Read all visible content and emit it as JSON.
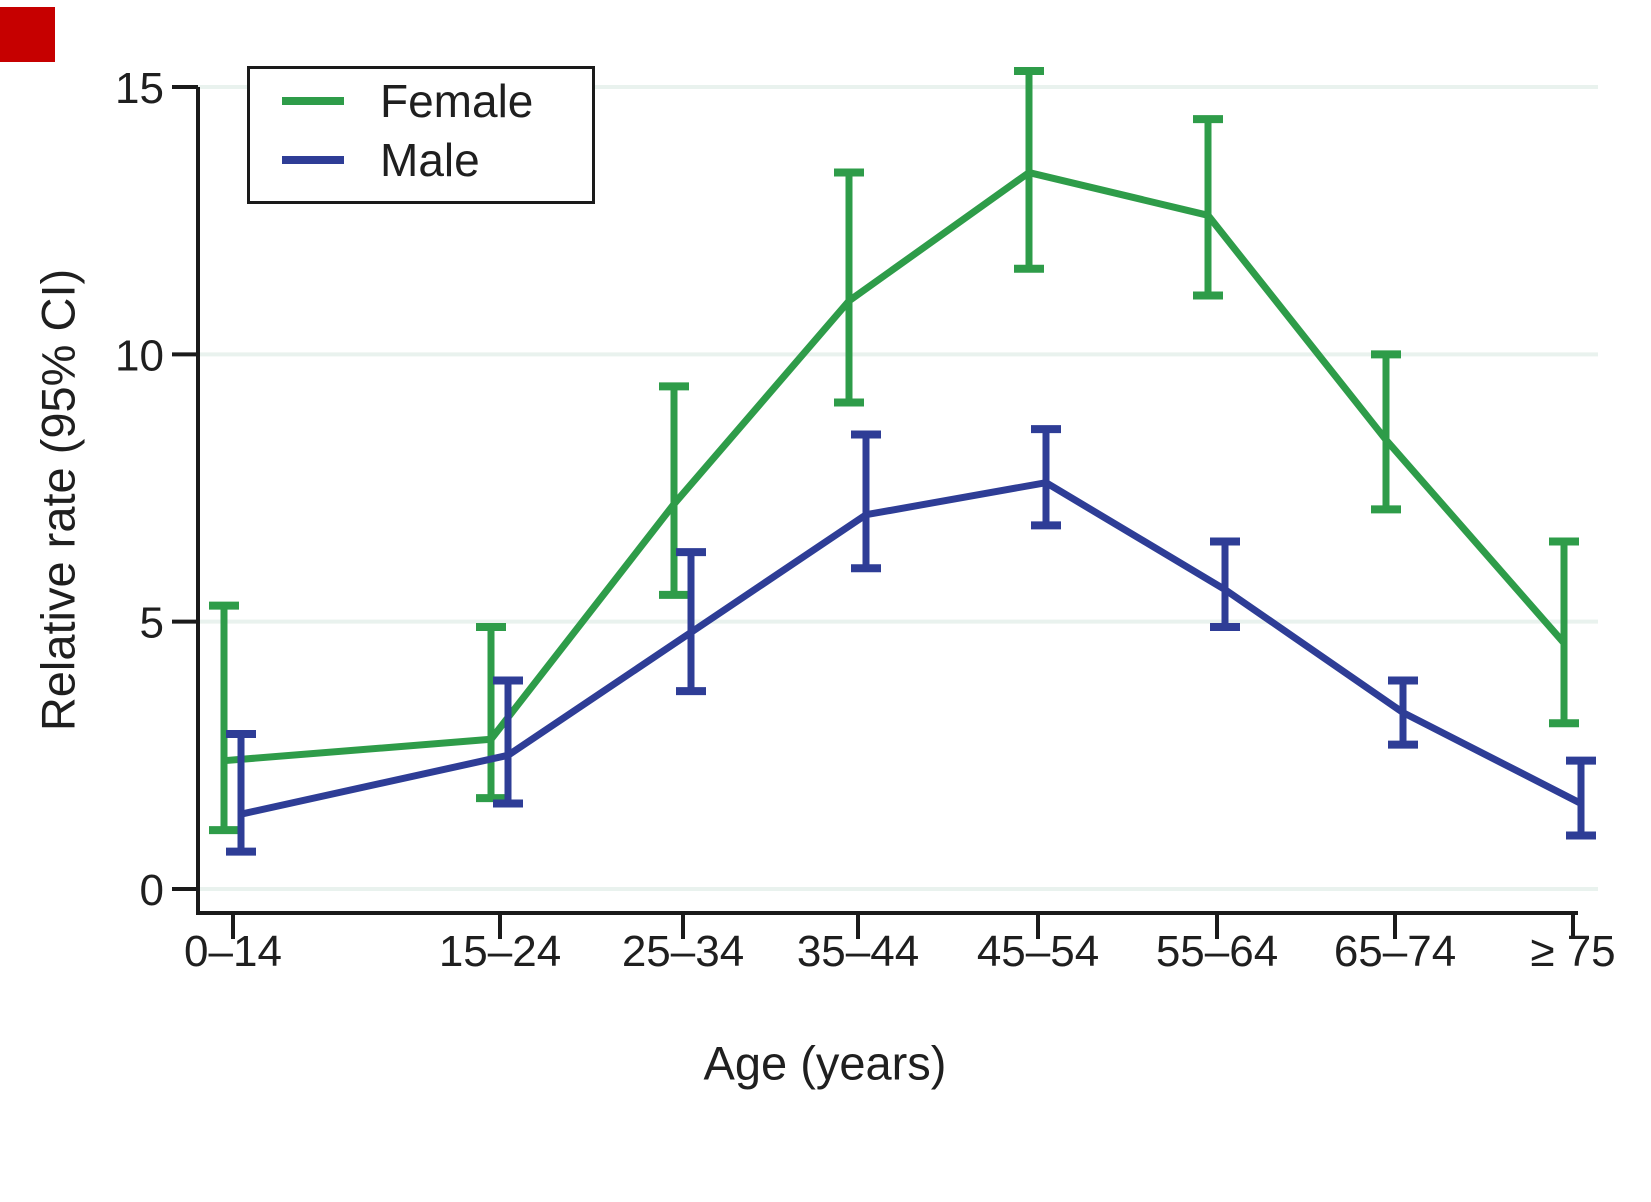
{
  "figure": {
    "corner_marker_color": "#C60000",
    "background": "#FFFFFF"
  },
  "legend": {
    "position": "top-left",
    "items": [
      {
        "label": "Female",
        "color": "#2E9C49"
      },
      {
        "label": "Male",
        "color": "#2E3D96"
      }
    ]
  },
  "colors": {
    "grid": "#E9F2EE",
    "axis": "#1A1A1A",
    "text": "#1F1F1F",
    "female": "#2E9C49",
    "male": "#2E3D96"
  },
  "chart_data": {
    "type": "line",
    "title": "",
    "xlabel": "Age (years)",
    "ylabel": "Relative rate (95% CI)",
    "categories": [
      "0–14",
      "15–24",
      "25–34",
      "35–44",
      "45–54",
      "55–64",
      "65–74",
      "≥ 75"
    ],
    "yticks": [
      0,
      5,
      10,
      15
    ],
    "ylim": [
      0,
      15
    ],
    "grid": "horizontal",
    "legend_position": "top-left",
    "error_bars": true,
    "series": [
      {
        "name": "Female",
        "color": "#2E9C49",
        "values": [
          2.4,
          2.8,
          7.2,
          11.0,
          13.4,
          12.6,
          8.4,
          4.6
        ],
        "ci_low": [
          1.1,
          1.7,
          5.5,
          9.1,
          11.6,
          11.1,
          7.1,
          3.1
        ],
        "ci_high": [
          5.3,
          4.9,
          9.4,
          13.4,
          15.3,
          14.4,
          10.0,
          6.5
        ]
      },
      {
        "name": "Male",
        "color": "#2E3D96",
        "values": [
          1.4,
          2.5,
          4.8,
          7.0,
          7.6,
          5.6,
          3.3,
          1.6
        ],
        "ci_low": [
          0.7,
          1.6,
          3.7,
          6.0,
          6.8,
          4.9,
          2.7,
          1.0
        ],
        "ci_high": [
          2.9,
          3.9,
          6.3,
          8.5,
          8.6,
          6.5,
          3.9,
          2.4
        ]
      }
    ]
  }
}
